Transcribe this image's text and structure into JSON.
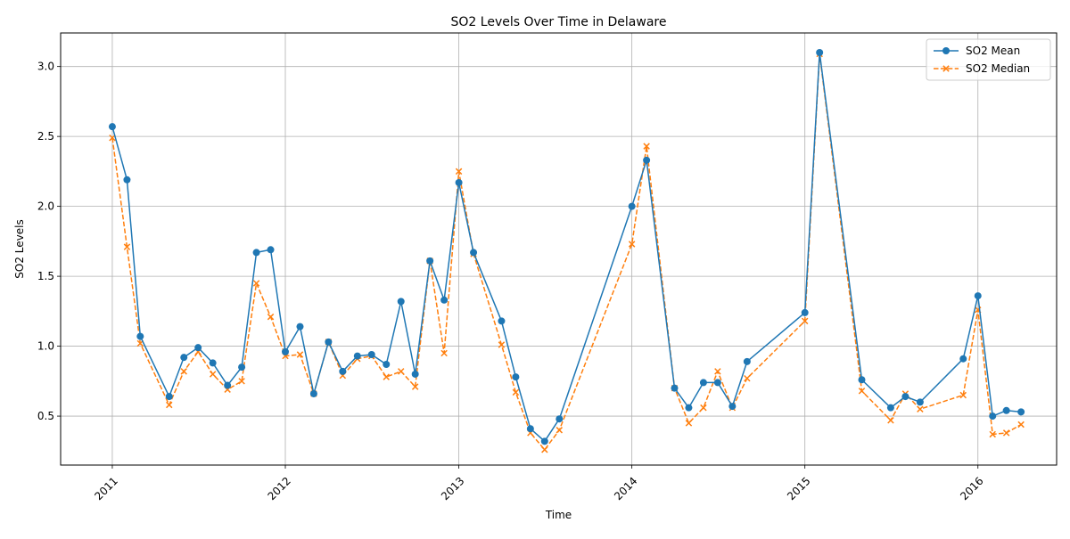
{
  "chart_data": {
    "type": "line",
    "title": "SO2 Levels Over Time in Delaware",
    "xlabel": "Time",
    "ylabel": "SO2 Levels",
    "xlim": [
      "2010-09-14",
      "2016-06-15"
    ],
    "ylim": [
      0.15,
      3.24
    ],
    "grid": true,
    "legend_position": "top-right",
    "x_ticks": [
      "2011",
      "2012",
      "2013",
      "2014",
      "2015",
      "2016"
    ],
    "y_ticks": [
      "0.5",
      "1.0",
      "1.5",
      "2.0",
      "2.5",
      "3.0"
    ],
    "colors": {
      "mean": "#1f77b4",
      "median": "#ff7f0e",
      "grid": "#b0b0b0"
    },
    "x": [
      "2011-01-01",
      "2011-02-01",
      "2011-03-01",
      "2011-05-01",
      "2011-06-01",
      "2011-07-01",
      "2011-08-01",
      "2011-09-01",
      "2011-10-01",
      "2011-11-01",
      "2011-12-01",
      "2012-01-01",
      "2012-02-01",
      "2012-03-01",
      "2012-04-01",
      "2012-05-01",
      "2012-06-01",
      "2012-07-01",
      "2012-08-01",
      "2012-09-01",
      "2012-10-01",
      "2012-11-01",
      "2012-12-01",
      "2013-01-01",
      "2013-02-01",
      "2013-04-01",
      "2013-05-01",
      "2013-06-01",
      "2013-07-01",
      "2013-08-01",
      "2014-01-01",
      "2014-02-01",
      "2014-04-01",
      "2014-05-01",
      "2014-06-01",
      "2014-07-01",
      "2014-08-01",
      "2014-09-01",
      "2015-01-01",
      "2015-02-01",
      "2015-05-01",
      "2015-07-01",
      "2015-08-01",
      "2015-09-01",
      "2015-12-01",
      "2016-01-01",
      "2016-02-01",
      "2016-03-01",
      "2016-04-01"
    ],
    "series": [
      {
        "name": "SO2 Mean",
        "marker": "circle",
        "line": "solid",
        "values": [
          2.57,
          2.19,
          1.07,
          0.64,
          0.92,
          0.99,
          0.88,
          0.72,
          0.85,
          1.67,
          1.69,
          0.96,
          1.14,
          0.66,
          1.03,
          0.82,
          0.93,
          0.94,
          0.87,
          1.32,
          0.8,
          1.61,
          1.33,
          2.17,
          1.67,
          1.18,
          0.78,
          0.41,
          0.32,
          0.48,
          2.0,
          2.33,
          0.7,
          0.56,
          0.74,
          0.74,
          0.57,
          0.89,
          1.24,
          3.1,
          0.76,
          0.56,
          0.64,
          0.6,
          0.91,
          1.36,
          0.5,
          0.54,
          0.53
        ]
      },
      {
        "name": "SO2 Median",
        "marker": "x",
        "line": "dashed",
        "values": [
          2.49,
          1.71,
          1.02,
          0.58,
          0.82,
          0.96,
          0.8,
          0.69,
          0.75,
          1.45,
          1.21,
          0.93,
          0.94,
          0.66,
          1.03,
          0.79,
          0.91,
          0.93,
          0.78,
          0.82,
          0.71,
          1.61,
          0.95,
          2.25,
          1.66,
          1.01,
          0.67,
          0.38,
          0.26,
          0.4,
          1.73,
          2.43,
          0.7,
          0.45,
          0.56,
          0.82,
          0.56,
          0.77,
          1.18,
          3.09,
          0.68,
          0.47,
          0.66,
          0.55,
          0.65,
          1.26,
          0.37,
          0.38,
          0.44
        ]
      }
    ]
  }
}
